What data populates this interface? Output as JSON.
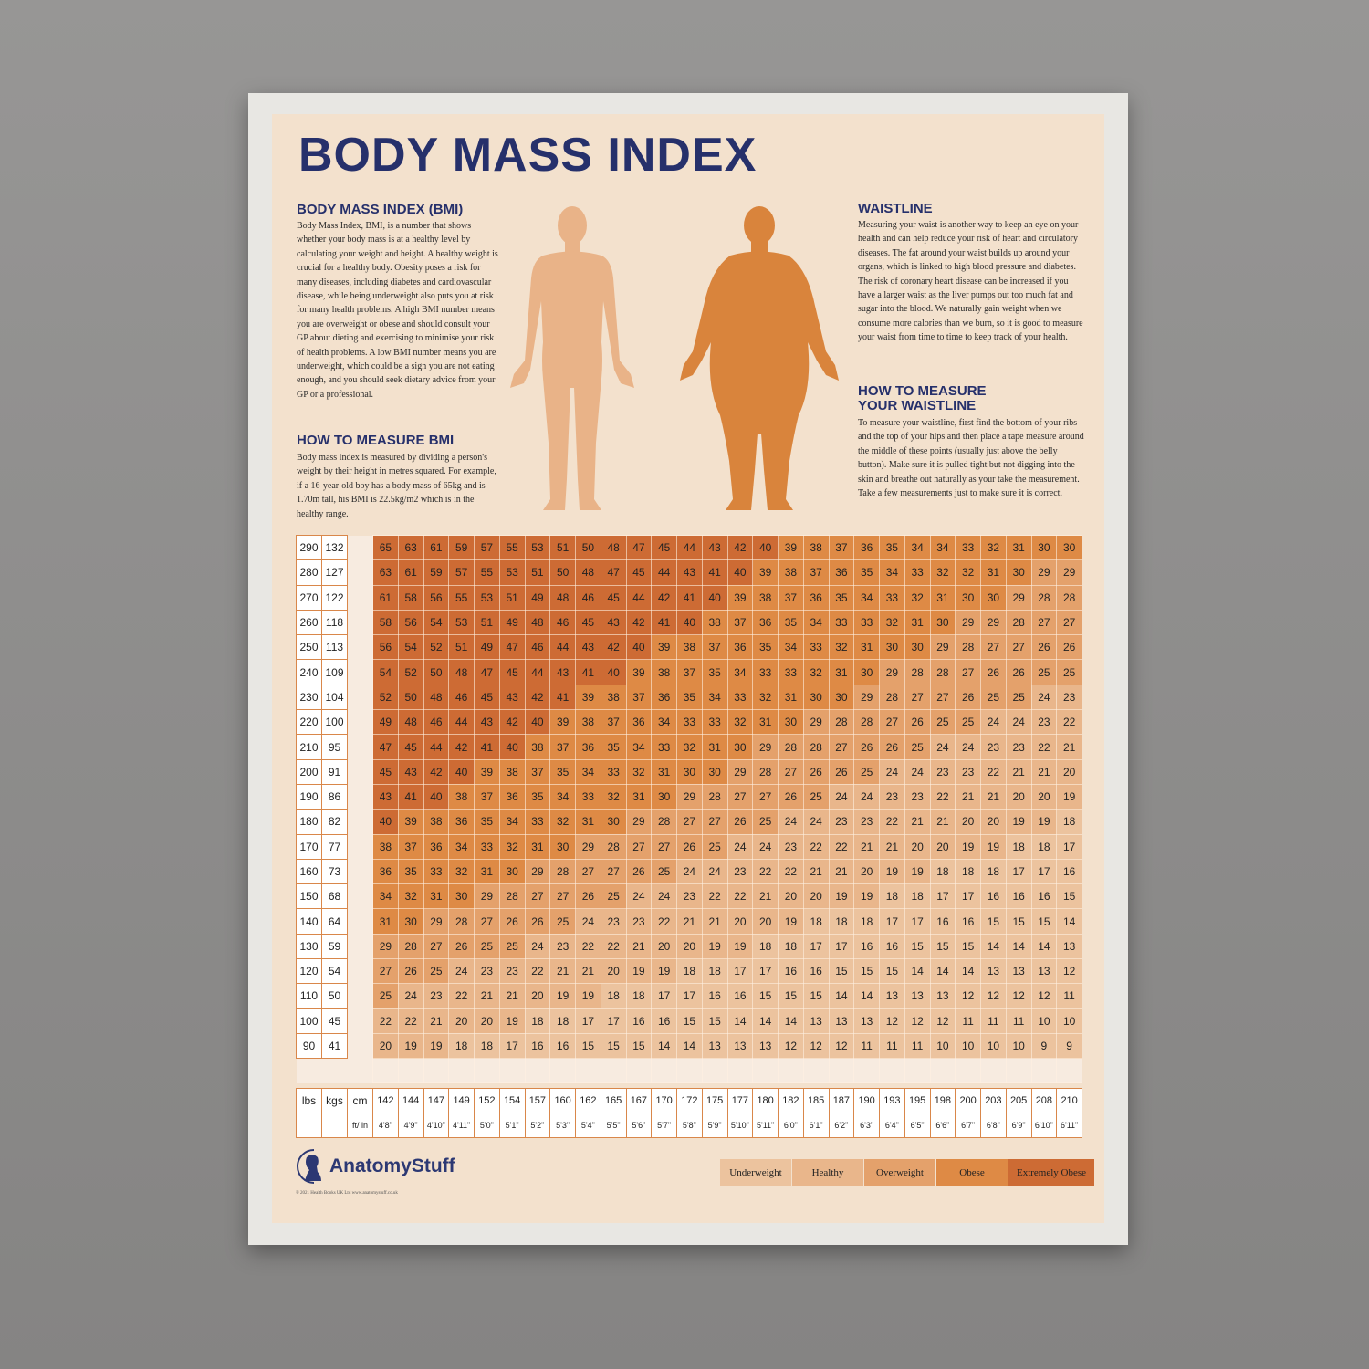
{
  "title": "BODY MASS INDEX",
  "sections": {
    "bmi": {
      "heading": "BODY MASS INDEX (BMI)",
      "text": "Body Mass Index, BMI, is a number that shows whether your body mass is at a healthy level by calculating your weight and height. A healthy weight is crucial for a healthy body. Obesity poses a risk for many diseases, including diabetes and cardiovascular disease, while being underweight also puts you at risk for many health problems. A high BMI number means you are overweight or obese and should consult your GP about dieting and exercising to minimise your risk of health problems. A low BMI number means you are underweight, which could be a sign you are not eating enough, and you should seek dietary advice from your GP or a professional."
    },
    "measure_bmi": {
      "heading": "HOW TO MEASURE BMI",
      "text": "Body mass index is measured by dividing a person's weight by their height in metres squared. For example, if a 16-year-old boy has a body mass of 65kg and is 1.70m tall, his BMI is 22.5kg/m2 which is in the healthy range."
    },
    "waistline": {
      "heading": "WAISTLINE",
      "text": "Measuring your waist is another way to keep an eye on your health and can help reduce your risk of heart and circulatory diseases. The fat around your waist builds up around your organs, which is linked to high blood pressure and diabetes. The risk of coronary heart disease can be increased if you have a larger waist as the liver pumps out too much fat and sugar into the blood. We naturally gain weight when we consume more calories than we burn, so it is good to measure your waist from time to time to keep track of your health."
    },
    "measure_waist": {
      "heading": "HOW TO MEASURE YOUR WAISTLINE",
      "text": "To measure your waistline, first find the bottom of your ribs and the top of your hips and then place a tape measure around the middle of these points (usually just above the belly button). Make sure it is pulled tight but not digging into the skin and breathe out naturally as your take the measurement. Take a few measurements just to make sure it is correct."
    }
  },
  "table": {
    "labels": {
      "lbs": "lbs",
      "kgs": "kgs",
      "cm": "cm",
      "ftin": "ft/ in"
    },
    "heights_cm": [
      "142",
      "144",
      "147",
      "149",
      "152",
      "154",
      "157",
      "160",
      "162",
      "165",
      "167",
      "170",
      "172",
      "175",
      "177",
      "180",
      "182",
      "185",
      "187",
      "190",
      "193",
      "195",
      "198",
      "200",
      "203",
      "205",
      "208",
      "210"
    ],
    "heights_ft": [
      "4'8\"",
      "4'9\"",
      "4'10\"",
      "4'11\"",
      "5'0\"",
      "5'1\"",
      "5'2\"",
      "5'3\"",
      "5'4\"",
      "5'5\"",
      "5'6\"",
      "5'7\"",
      "5'8\"",
      "5'9\"",
      "5'10\"",
      "5'11\"",
      "6'0\"",
      "6'1\"",
      "6'2\"",
      "6'3\"",
      "6'4\"",
      "6'5\"",
      "6'6\"",
      "6'7\"",
      "6'8\"",
      "6'9\"",
      "6'10\"",
      "6'11\""
    ],
    "rows": [
      {
        "lbs": "290",
        "kgs": "132",
        "bmi": [
          65,
          63,
          61,
          59,
          57,
          55,
          53,
          51,
          50,
          48,
          47,
          45,
          44,
          43,
          42,
          40,
          39,
          38,
          37,
          36,
          35,
          34,
          34,
          33,
          32,
          31,
          30,
          30
        ]
      },
      {
        "lbs": "280",
        "kgs": "127",
        "bmi": [
          63,
          61,
          59,
          57,
          55,
          53,
          51,
          50,
          48,
          47,
          45,
          44,
          43,
          41,
          40,
          39,
          38,
          37,
          36,
          35,
          34,
          33,
          32,
          32,
          31,
          30,
          29,
          29
        ]
      },
      {
        "lbs": "270",
        "kgs": "122",
        "bmi": [
          61,
          58,
          56,
          55,
          53,
          51,
          49,
          48,
          46,
          45,
          44,
          42,
          41,
          40,
          39,
          38,
          37,
          36,
          35,
          34,
          33,
          32,
          31,
          30,
          30,
          29,
          28,
          28
        ]
      },
      {
        "lbs": "260",
        "kgs": "118",
        "bmi": [
          58,
          56,
          54,
          53,
          51,
          49,
          48,
          46,
          45,
          43,
          42,
          41,
          40,
          38,
          37,
          36,
          35,
          34,
          33,
          33,
          32,
          31,
          30,
          29,
          29,
          28,
          27,
          27
        ]
      },
      {
        "lbs": "250",
        "kgs": "113",
        "bmi": [
          56,
          54,
          52,
          51,
          49,
          47,
          46,
          44,
          43,
          42,
          40,
          39,
          38,
          37,
          36,
          35,
          34,
          33,
          32,
          31,
          30,
          30,
          29,
          28,
          27,
          27,
          26,
          26
        ]
      },
      {
        "lbs": "240",
        "kgs": "109",
        "bmi": [
          54,
          52,
          50,
          48,
          47,
          45,
          44,
          43,
          41,
          40,
          39,
          38,
          37,
          35,
          34,
          33,
          33,
          32,
          31,
          30,
          29,
          28,
          28,
          27,
          26,
          26,
          25,
          25
        ]
      },
      {
        "lbs": "230",
        "kgs": "104",
        "bmi": [
          52,
          50,
          48,
          46,
          45,
          43,
          42,
          41,
          39,
          38,
          37,
          36,
          35,
          34,
          33,
          32,
          31,
          30,
          30,
          29,
          28,
          27,
          27,
          26,
          25,
          25,
          24,
          23
        ]
      },
      {
        "lbs": "220",
        "kgs": "100",
        "bmi": [
          49,
          48,
          46,
          44,
          43,
          42,
          40,
          39,
          38,
          37,
          36,
          34,
          33,
          33,
          32,
          31,
          30,
          29,
          28,
          28,
          27,
          26,
          25,
          25,
          24,
          24,
          23,
          22
        ]
      },
      {
        "lbs": "210",
        "kgs": "95",
        "bmi": [
          47,
          45,
          44,
          42,
          41,
          40,
          38,
          37,
          36,
          35,
          34,
          33,
          32,
          31,
          30,
          29,
          28,
          28,
          27,
          26,
          26,
          25,
          24,
          24,
          23,
          23,
          22,
          21
        ]
      },
      {
        "lbs": "200",
        "kgs": "91",
        "bmi": [
          45,
          43,
          42,
          40,
          39,
          38,
          37,
          35,
          34,
          33,
          32,
          31,
          30,
          30,
          29,
          28,
          27,
          26,
          26,
          25,
          24,
          24,
          23,
          23,
          22,
          21,
          21,
          20
        ]
      },
      {
        "lbs": "190",
        "kgs": "86",
        "bmi": [
          43,
          41,
          40,
          38,
          37,
          36,
          35,
          34,
          33,
          32,
          31,
          30,
          29,
          28,
          27,
          27,
          26,
          25,
          24,
          24,
          23,
          23,
          22,
          21,
          21,
          20,
          20,
          19
        ]
      },
      {
        "lbs": "180",
        "kgs": "82",
        "bmi": [
          40,
          39,
          38,
          36,
          35,
          34,
          33,
          32,
          31,
          30,
          29,
          28,
          27,
          27,
          26,
          25,
          24,
          24,
          23,
          23,
          22,
          21,
          21,
          20,
          20,
          19,
          19,
          18
        ]
      },
      {
        "lbs": "170",
        "kgs": "77",
        "bmi": [
          38,
          37,
          36,
          34,
          33,
          32,
          31,
          30,
          29,
          28,
          27,
          27,
          26,
          25,
          24,
          24,
          23,
          22,
          22,
          21,
          21,
          20,
          20,
          19,
          19,
          18,
          18,
          17
        ]
      },
      {
        "lbs": "160",
        "kgs": "73",
        "bmi": [
          36,
          35,
          33,
          32,
          31,
          30,
          29,
          28,
          27,
          27,
          26,
          25,
          24,
          24,
          23,
          22,
          22,
          21,
          21,
          20,
          19,
          19,
          18,
          18,
          18,
          17,
          17,
          16
        ]
      },
      {
        "lbs": "150",
        "kgs": "68",
        "bmi": [
          34,
          32,
          31,
          30,
          29,
          28,
          27,
          27,
          26,
          25,
          24,
          24,
          23,
          22,
          22,
          21,
          20,
          20,
          19,
          19,
          18,
          18,
          17,
          17,
          16,
          16,
          16,
          15
        ]
      },
      {
        "lbs": "140",
        "kgs": "64",
        "bmi": [
          31,
          30,
          29,
          28,
          27,
          26,
          26,
          25,
          24,
          23,
          23,
          22,
          21,
          21,
          20,
          20,
          19,
          18,
          18,
          18,
          17,
          17,
          16,
          16,
          15,
          15,
          15,
          14
        ]
      },
      {
        "lbs": "130",
        "kgs": "59",
        "bmi": [
          29,
          28,
          27,
          26,
          25,
          25,
          24,
          23,
          22,
          22,
          21,
          20,
          20,
          19,
          19,
          18,
          18,
          17,
          17,
          16,
          16,
          15,
          15,
          15,
          14,
          14,
          14,
          13
        ]
      },
      {
        "lbs": "120",
        "kgs": "54",
        "bmi": [
          27,
          26,
          25,
          24,
          23,
          23,
          22,
          21,
          21,
          20,
          19,
          19,
          18,
          18,
          17,
          17,
          16,
          16,
          15,
          15,
          15,
          14,
          14,
          14,
          13,
          13,
          13,
          12
        ]
      },
      {
        "lbs": "110",
        "kgs": "50",
        "bmi": [
          25,
          24,
          23,
          22,
          21,
          21,
          20,
          19,
          19,
          18,
          18,
          17,
          17,
          16,
          16,
          15,
          15,
          15,
          14,
          14,
          13,
          13,
          13,
          12,
          12,
          12,
          12,
          11
        ]
      },
      {
        "lbs": "100",
        "kgs": "45",
        "bmi": [
          22,
          22,
          21,
          20,
          20,
          19,
          18,
          18,
          17,
          17,
          16,
          16,
          15,
          15,
          14,
          14,
          14,
          13,
          13,
          13,
          12,
          12,
          12,
          11,
          11,
          11,
          10,
          10
        ]
      },
      {
        "lbs": "90",
        "kgs": "41",
        "bmi": [
          20,
          19,
          19,
          18,
          18,
          17,
          16,
          16,
          15,
          15,
          15,
          14,
          14,
          13,
          13,
          13,
          12,
          12,
          12,
          11,
          11,
          11,
          10,
          10,
          10,
          10,
          9,
          9
        ]
      }
    ]
  },
  "legend": [
    {
      "label": "Underweight",
      "color": "#ecc39e"
    },
    {
      "label": "Healthy",
      "color": "#e9b68b"
    },
    {
      "label": "Overweight",
      "color": "#e4a16b"
    },
    {
      "label": "Obese",
      "color": "#de8a45"
    },
    {
      "label": "Extremely Obese",
      "color": "#cd6b34"
    }
  ],
  "colors": {
    "title": "#26306b",
    "healthy_figure": "#e9b388",
    "obese_figure": "#d9843c"
  },
  "logo": {
    "name": "AnatomyStuff",
    "icon": "head-silhouette-icon"
  },
  "copyright": "© 2021 Health Books UK Ltd www.anatomystuff.co.uk"
}
